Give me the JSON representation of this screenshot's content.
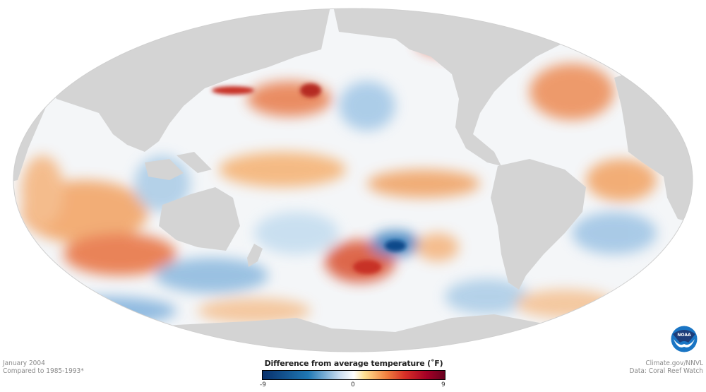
{
  "map": {
    "projection": "Mollweide, Pacific-centered",
    "land_color": "#d4d4d4",
    "ocean_neutral_color": "#f7f7f7"
  },
  "left_meta": {
    "date": "January 2004",
    "baseline": "Compared to 1985-1993*"
  },
  "right_meta": {
    "credit": "Climate.gov/NNVL",
    "source": "Data: Coral Reef Watch"
  },
  "legend": {
    "title": "Difference from average temperature (˚F)",
    "min_label": "-9",
    "mid_label": "0",
    "max_label": "9",
    "range": [
      -9,
      9
    ],
    "colors": [
      "#08306b",
      "#1f78b4",
      "#c6dbef",
      "#ffffff",
      "#fee090",
      "#f08040",
      "#d73027",
      "#a50026",
      "#67001f"
    ]
  },
  "logo": {
    "text": "NOAA",
    "color": "#1a75c4"
  }
}
